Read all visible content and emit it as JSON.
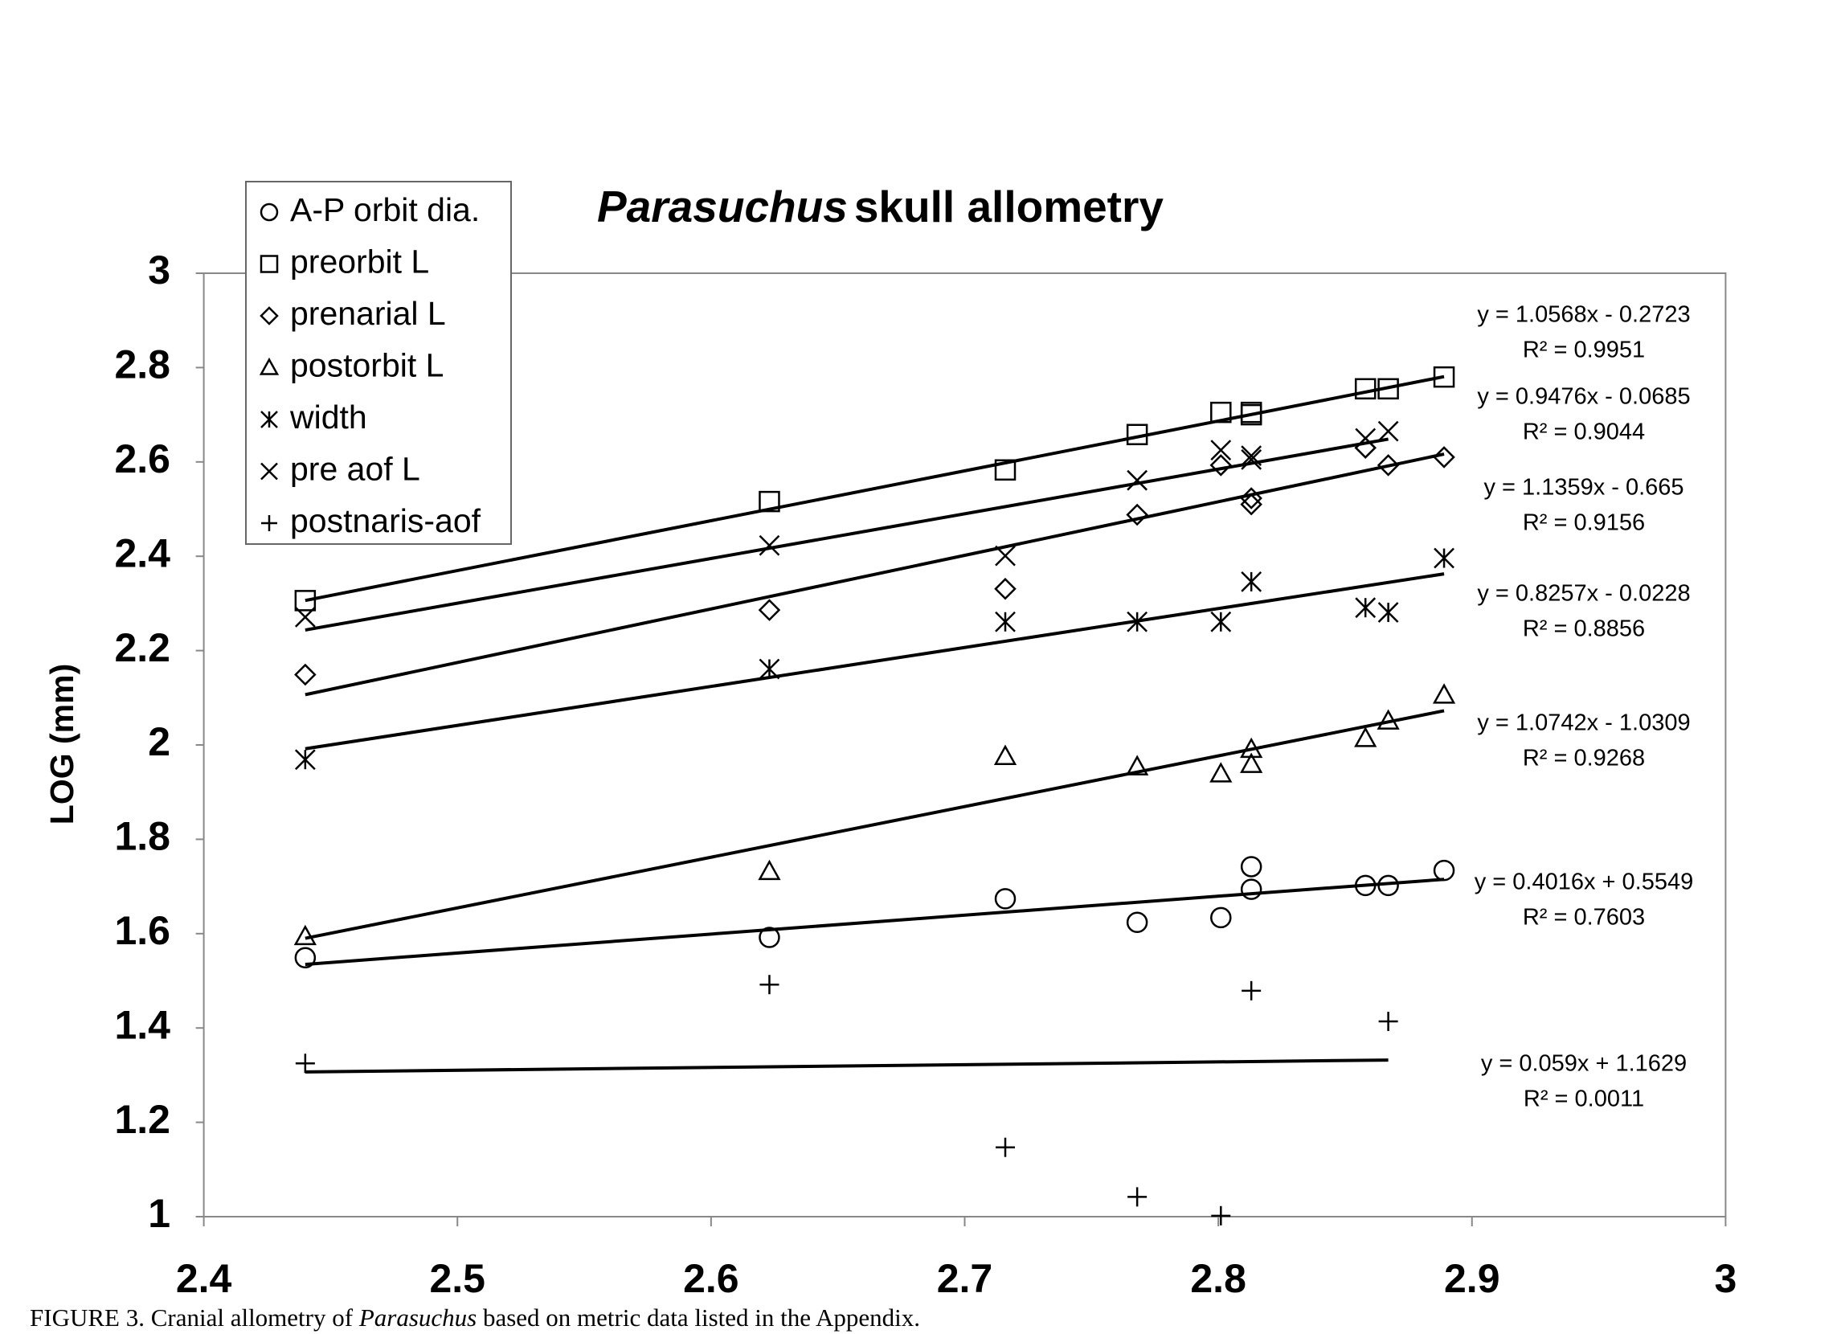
{
  "chart_data": {
    "type": "scatter",
    "title_italic": "Parasuchus",
    "title_rest": "skull allometry",
    "y_label": "LOG (mm)",
    "caption": [
      "FIGURE 3. Cranial allometry of ",
      "Parasuchus",
      " based on metric data listed in the Appendix."
    ],
    "xlim": [
      2.4,
      3
    ],
    "xticks": [
      2.4,
      2.5,
      2.6,
      2.7,
      2.8,
      2.9,
      3
    ],
    "ylim": [
      1,
      3
    ],
    "yticks": [
      1,
      1.2,
      1.4,
      1.6,
      1.8,
      2,
      2.2,
      2.4,
      2.6,
      2.8,
      3
    ],
    "grid": false,
    "legend": "top-left",
    "series": [
      {
        "name": "A-P orbit dia.",
        "marker": "circle",
        "color": "#000000",
        "x": [
          2.44,
          2.623,
          2.716,
          2.768,
          2.801,
          2.813,
          2.813,
          2.858,
          2.867,
          2.889
        ],
        "values": [
          1.549,
          1.592,
          1.674,
          1.624,
          1.634,
          1.742,
          1.694,
          1.702,
          1.702,
          1.734
        ],
        "trend": {
          "slope": 0.4016,
          "intercept": 0.5549,
          "equation": "y = 0.4016x + 0.5549",
          "r2_label": "R² = 0.7603"
        }
      },
      {
        "name": "preorbit L",
        "marker": "square",
        "color": "#000000",
        "x": [
          2.44,
          2.623,
          2.716,
          2.768,
          2.801,
          2.813,
          2.813,
          2.858,
          2.867,
          2.889
        ],
        "values": [
          2.306,
          2.516,
          2.583,
          2.658,
          2.705,
          2.7,
          2.705,
          2.755,
          2.755,
          2.78
        ],
        "trend": {
          "slope": 1.0568,
          "intercept": -0.2723,
          "equation": "y = 1.0568x - 0.2723",
          "r2_label": "R² = 0.9951"
        }
      },
      {
        "name": "prenarial L",
        "marker": "diamond",
        "color": "#000000",
        "x": [
          2.44,
          2.623,
          2.716,
          2.768,
          2.801,
          2.813,
          2.813,
          2.858,
          2.867,
          2.889
        ],
        "values": [
          2.149,
          2.286,
          2.331,
          2.488,
          2.593,
          2.523,
          2.51,
          2.63,
          2.593,
          2.61
        ],
        "trend": {
          "slope": 1.1359,
          "intercept": -0.665,
          "equation": "y = 1.1359x - 0.665",
          "r2_label": "R² = 0.9156"
        }
      },
      {
        "name": "postorbit L",
        "marker": "triangle",
        "color": "#000000",
        "x": [
          2.44,
          2.623,
          2.716,
          2.768,
          2.801,
          2.813,
          2.813,
          2.858,
          2.867,
          2.889
        ],
        "values": [
          1.594,
          1.732,
          1.976,
          1.954,
          1.939,
          1.991,
          1.959,
          2.014,
          2.051,
          2.106
        ],
        "trend": {
          "slope": 1.0742,
          "intercept": -1.0309,
          "equation": "y = 1.0742x - 1.0309",
          "r2_label": "R² = 0.9268"
        }
      },
      {
        "name": "width",
        "marker": "asterisk",
        "color": "#000000",
        "x": [
          2.44,
          2.623,
          2.716,
          2.768,
          2.801,
          2.813,
          2.858,
          2.867,
          2.889
        ],
        "values": [
          1.969,
          2.161,
          2.261,
          2.261,
          2.261,
          2.346,
          2.291,
          2.281,
          2.396
        ],
        "trend": {
          "slope": 0.8257,
          "intercept": -0.0228,
          "equation": "y = 0.8257x - 0.0228",
          "r2_label": "R² = 0.8856"
        }
      },
      {
        "name": "pre aof L",
        "marker": "cross",
        "color": "#000000",
        "x": [
          2.44,
          2.623,
          2.716,
          2.768,
          2.801,
          2.813,
          2.813,
          2.858,
          2.867
        ],
        "values": [
          2.271,
          2.423,
          2.401,
          2.561,
          2.625,
          2.605,
          2.613,
          2.65,
          2.665
        ],
        "trend": {
          "slope": 0.9476,
          "intercept": -0.0685,
          "equation": "y = 0.9476x - 0.0685",
          "r2_label": "R² = 0.9044"
        }
      },
      {
        "name": "postnaris-aof",
        "marker": "plus",
        "color": "#000000",
        "x": [
          2.44,
          2.623,
          2.716,
          2.768,
          2.801,
          2.813,
          2.867
        ],
        "values": [
          1.325,
          1.492,
          1.147,
          1.042,
          1.002,
          1.479,
          1.414
        ],
        "trend": {
          "slope": 0.059,
          "intercept": 1.1629,
          "equation": "y = 0.059x + 1.1629",
          "r2_label": "R² = 0.0011"
        }
      }
    ]
  }
}
